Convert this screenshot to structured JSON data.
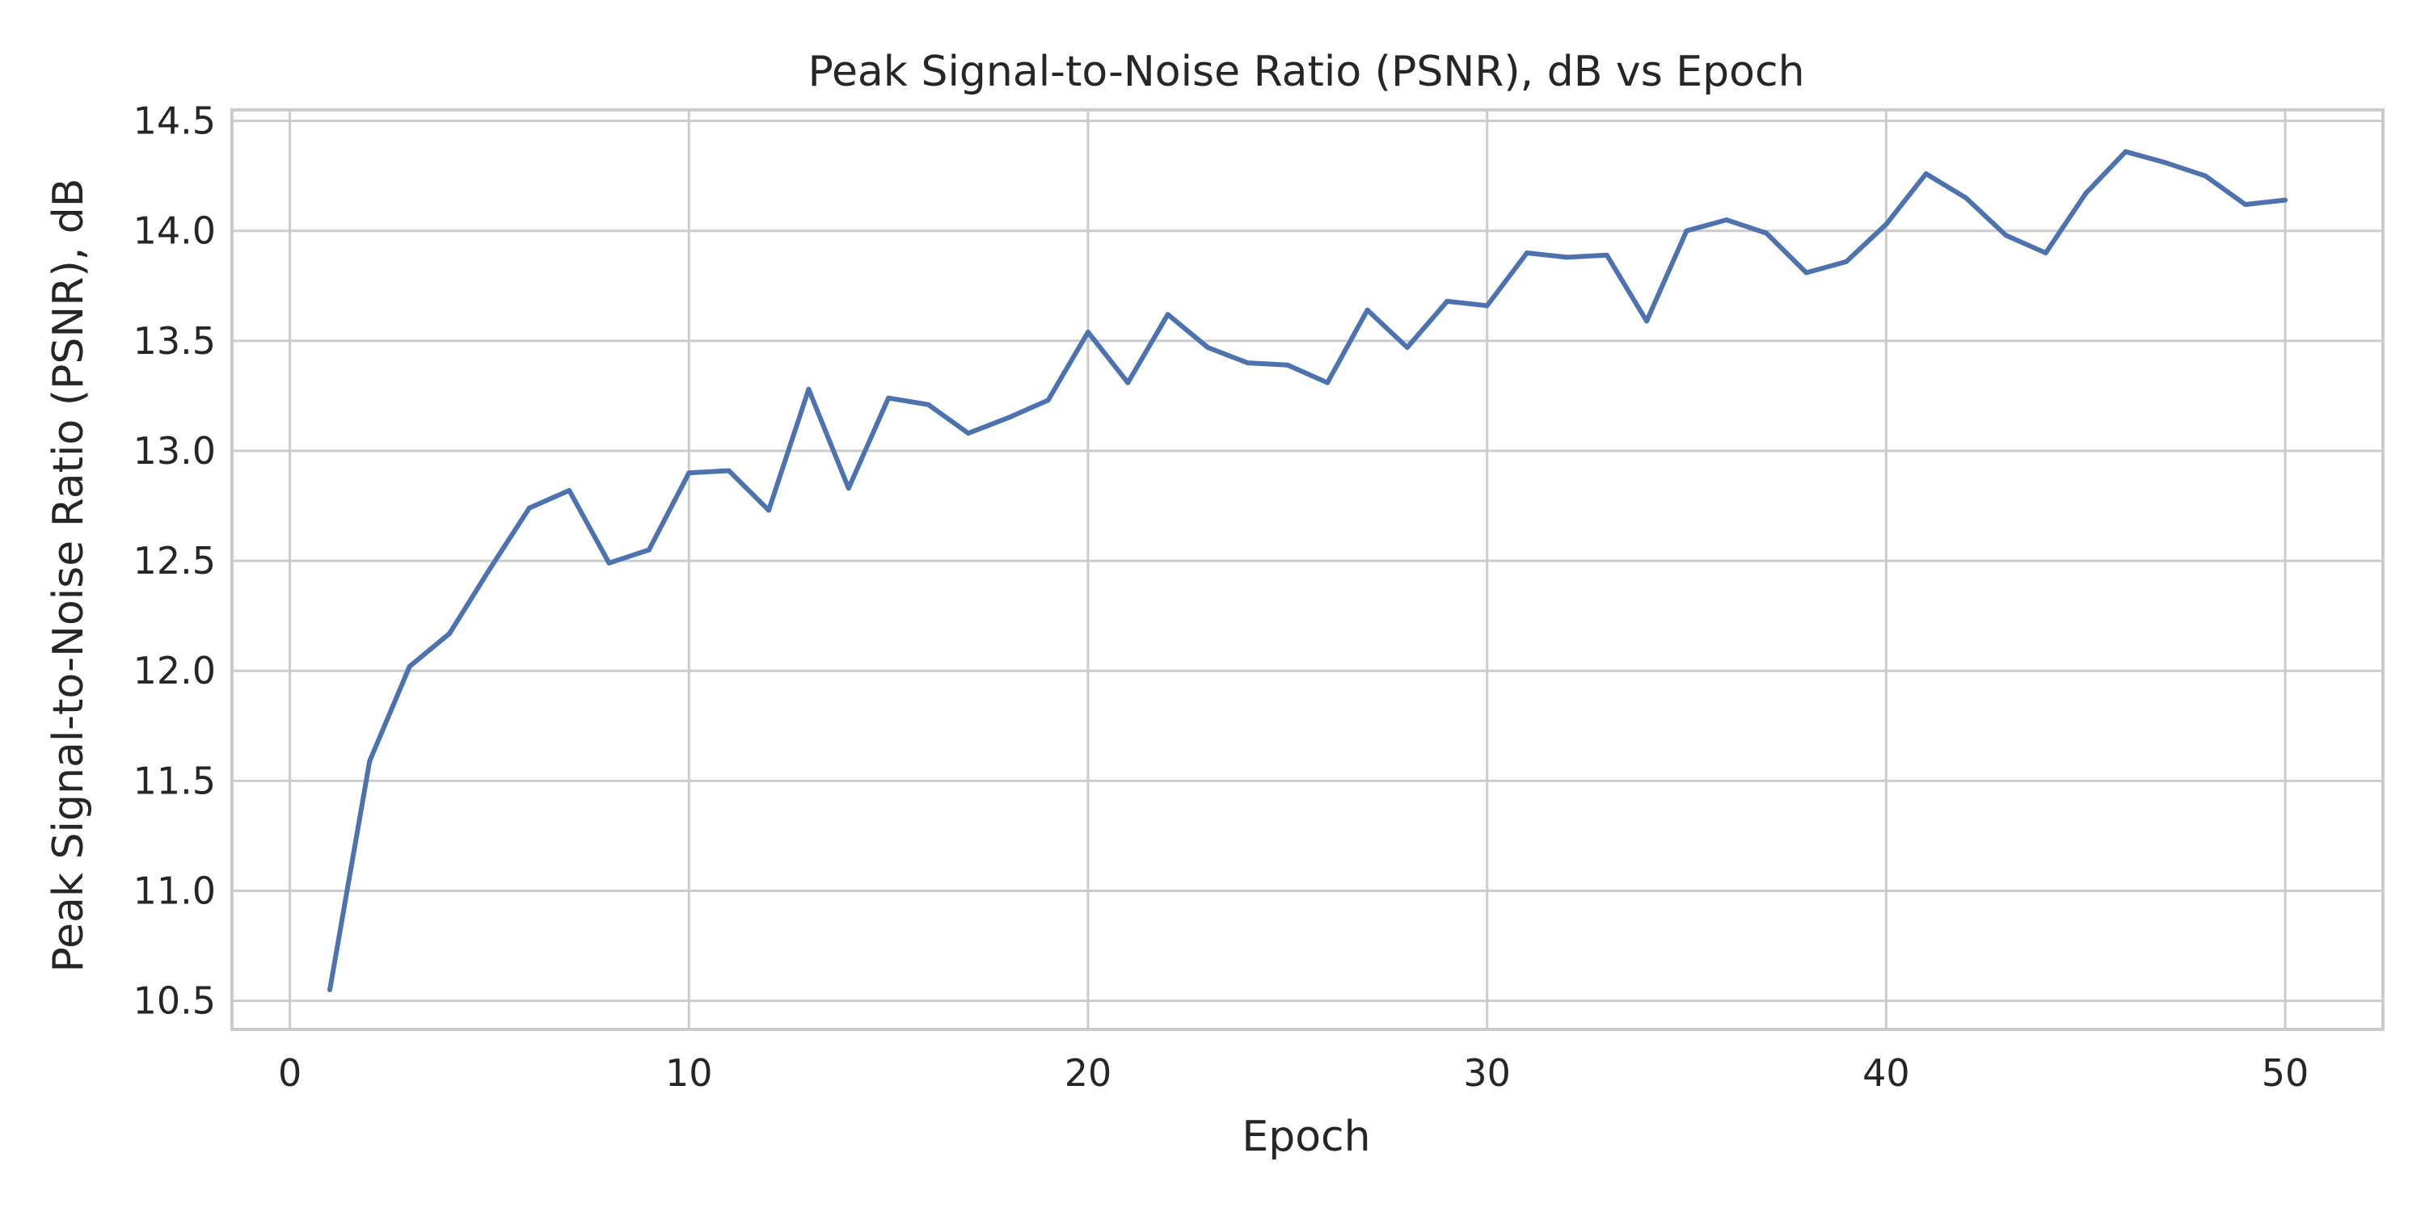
{
  "chart_data": {
    "type": "line",
    "title": "Peak Signal-to-Noise Ratio (PSNR), dB vs Epoch",
    "xlabel": "Epoch",
    "ylabel": "Peak Signal-to-Noise Ratio (PSNR), dB",
    "xlim": [
      -1.45,
      52.45
    ],
    "ylim": [
      10.37,
      14.55
    ],
    "xticks": [
      0,
      10,
      20,
      30,
      40,
      50
    ],
    "yticks": [
      10.5,
      11.0,
      11.5,
      12.0,
      12.5,
      13.0,
      13.5,
      14.0,
      14.5
    ],
    "xtick_labels": [
      "0",
      "10",
      "20",
      "30",
      "40",
      "50"
    ],
    "ytick_labels": [
      "10.5",
      "11.0",
      "11.5",
      "12.0",
      "12.5",
      "13.0",
      "13.5",
      "14.0",
      "14.5"
    ],
    "grid": true,
    "legend": "none",
    "color": "#4c72b0",
    "series": [
      {
        "x": [
          1,
          2,
          3,
          4,
          5,
          6,
          7,
          8,
          9,
          10,
          11,
          12,
          13,
          14,
          15,
          16,
          17,
          18,
          19,
          20,
          21,
          22,
          23,
          24,
          25,
          26,
          27,
          28,
          29,
          30,
          31,
          32,
          33,
          34,
          35,
          36,
          37,
          38,
          39,
          40,
          41,
          42,
          43,
          44,
          45,
          46,
          47,
          48,
          49,
          50
        ],
        "values": [
          10.55,
          11.59,
          12.02,
          12.17,
          12.46,
          12.74,
          12.82,
          12.49,
          12.55,
          12.9,
          12.91,
          12.73,
          13.28,
          12.83,
          13.24,
          13.21,
          13.08,
          13.15,
          13.23,
          13.54,
          13.31,
          13.62,
          13.47,
          13.4,
          13.39,
          13.31,
          13.64,
          13.47,
          13.68,
          13.66,
          13.9,
          13.88,
          13.89,
          13.59,
          14.0,
          14.05,
          13.99,
          13.81,
          13.86,
          14.03,
          14.26,
          14.15,
          13.98,
          13.9,
          14.17,
          14.36,
          14.31,
          14.25,
          14.12,
          14.14
        ]
      }
    ]
  }
}
